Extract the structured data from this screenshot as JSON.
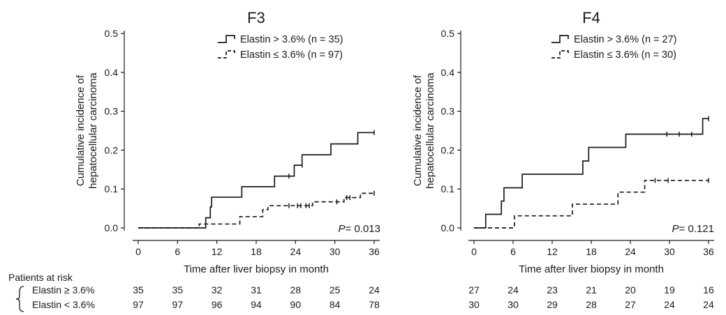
{
  "chart_data": [
    {
      "type": "line",
      "title": "F3",
      "xlabel": "Time after liver biopsy in month",
      "ylabel_line1": "Cumulative incidence of",
      "ylabel_line2": "hepatocellular carcinoma",
      "xlim": [
        0,
        36
      ],
      "ylim": [
        0,
        0.5
      ],
      "xticks": [
        0,
        6,
        12,
        18,
        24,
        30,
        36
      ],
      "yticks": [
        0.0,
        0.1,
        0.2,
        0.3,
        0.4,
        0.5
      ],
      "legend_position": "top-right",
      "p_label": "P",
      "p_value": "= 0.013",
      "series": [
        {
          "name": "Elastin > 3.6% (n = 35)",
          "style": "solid",
          "x": [
            0,
            10.3,
            10.8,
            11.0,
            11.2,
            15.8,
            20.8,
            23.3,
            23.8,
            25.0,
            29.4,
            33.5,
            36
          ],
          "y": [
            0,
            0.026,
            0.026,
            0.054,
            0.079,
            0.106,
            0.133,
            0.133,
            0.161,
            0.188,
            0.216,
            0.245,
            0.245
          ],
          "censored": [
            [
              23.0,
              0.133
            ],
            [
              25.0,
              0.161
            ],
            [
              36,
              0.245
            ]
          ]
        },
        {
          "name": "Elastin ≤ 3.6% (n = 97)",
          "style": "dashed",
          "x": [
            0,
            9.3,
            10.1,
            15.5,
            19.0,
            19.8,
            26.6,
            29.8,
            31.4,
            33.9,
            36
          ],
          "y": [
            0,
            0.01,
            0.01,
            0.029,
            0.047,
            0.057,
            0.067,
            0.067,
            0.078,
            0.089,
            0.089
          ],
          "censored": [
            [
              23.0,
              0.057
            ],
            [
              24.3,
              0.057
            ],
            [
              24.8,
              0.057
            ],
            [
              25.6,
              0.057
            ],
            [
              26.1,
              0.057
            ],
            [
              30.3,
              0.067
            ],
            [
              31.8,
              0.078
            ],
            [
              32.3,
              0.078
            ],
            [
              36,
              0.089
            ]
          ]
        }
      ],
      "risk_table": {
        "rows": [
          {
            "label": "Elastin ≥ 3.6%",
            "values": [
              35,
              35,
              32,
              31,
              28,
              25,
              24
            ]
          },
          {
            "label": "Elastin < 3.6%",
            "values": [
              97,
              97,
              96,
              94,
              90,
              84,
              78
            ]
          }
        ]
      }
    },
    {
      "type": "line",
      "title": "F4",
      "xlabel": "Time after liver biopsy in month",
      "ylabel_line1": "Cumulative incidence of",
      "ylabel_line2": "hepatocellular carcinoma",
      "xlim": [
        0,
        36
      ],
      "ylim": [
        0,
        0.5
      ],
      "xticks": [
        0,
        6,
        12,
        18,
        24,
        30,
        36
      ],
      "yticks": [
        0.0,
        0.1,
        0.2,
        0.3,
        0.4,
        0.5
      ],
      "legend_position": "top-right",
      "p_label": "P",
      "p_value": "= 0.121",
      "series": [
        {
          "name": "Elastin > 3.6% (n = 27)",
          "style": "solid",
          "x": [
            0,
            1.8,
            4.2,
            4.6,
            7.4,
            16.7,
            17.6,
            23.3,
            35.1,
            36
          ],
          "y": [
            0,
            0.035,
            0.069,
            0.103,
            0.138,
            0.172,
            0.207,
            0.241,
            0.281,
            0.281
          ],
          "censored": [
            [
              29.6,
              0.241
            ],
            [
              31.5,
              0.241
            ],
            [
              33.4,
              0.241
            ],
            [
              36,
              0.281
            ]
          ]
        },
        {
          "name": "Elastin ≤ 3.6% (n = 30)",
          "style": "dashed",
          "x": [
            0,
            6.2,
            15.1,
            22.1,
            26.2,
            36
          ],
          "y": [
            0,
            0.031,
            0.061,
            0.092,
            0.122,
            0.122
          ],
          "censored": [
            [
              27.8,
              0.122
            ],
            [
              29.8,
              0.122
            ],
            [
              36,
              0.122
            ]
          ]
        }
      ],
      "risk_table": {
        "rows": [
          {
            "label": "",
            "values": [
              27,
              24,
              23,
              21,
              20,
              19,
              16
            ]
          },
          {
            "label": "",
            "values": [
              30,
              30,
              29,
              28,
              27,
              24,
              24
            ]
          }
        ]
      }
    }
  ],
  "risk_table_header": "Patients at risk"
}
